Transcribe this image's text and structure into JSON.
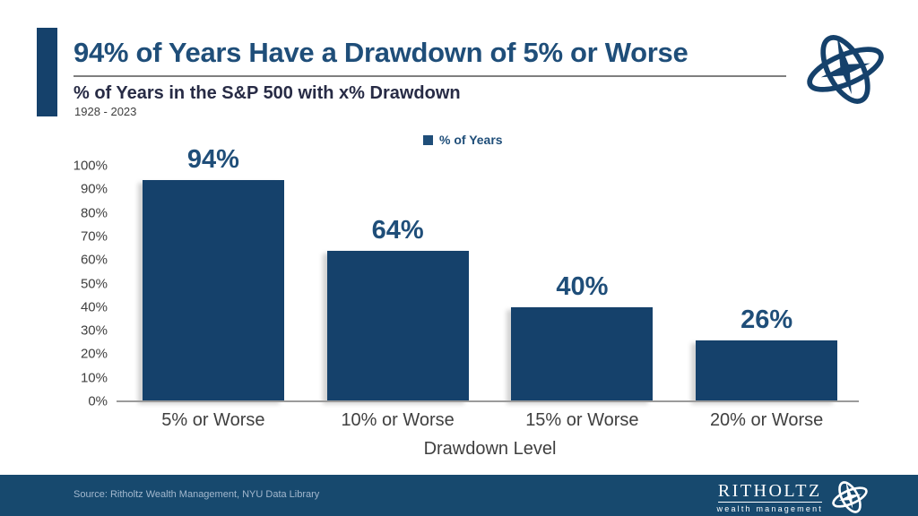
{
  "header": {
    "title": "94% of Years Have a Drawdown of 5% or Worse",
    "subtitle": "% of Years in the S&P 500 with x% Drawdown",
    "period": "1928 - 2023"
  },
  "legend": {
    "label": "% of Years"
  },
  "chart_data": {
    "type": "bar",
    "title": "94% of Years Have a Drawdown of 5% or Worse",
    "subtitle": "% of Years in the S&P 500 with x% Drawdown",
    "period": "1928 - 2023",
    "series_name": "% of Years",
    "categories": [
      "5% or Worse",
      "10% or Worse",
      "15% or Worse",
      "20% or Worse"
    ],
    "values": [
      94,
      64,
      40,
      26
    ],
    "value_labels": [
      "94%",
      "64%",
      "40%",
      "26%"
    ],
    "xlabel": "Drawdown Level",
    "ylabel": "",
    "ylim": [
      0,
      100
    ],
    "ytick_step": 10,
    "yticks": [
      "100%",
      "90%",
      "80%",
      "70%",
      "60%",
      "50%",
      "40%",
      "30%",
      "20%",
      "10%",
      "0%"
    ],
    "grid": false,
    "legend_position": "top-center",
    "bar_color": "#15416B",
    "label_color": "#1F4E79"
  },
  "footer": {
    "source": "Source: Ritholtz Wealth Management, NYU Data Library",
    "brand_name": "RITHOLTZ",
    "brand_sub": "wealth management"
  },
  "colors": {
    "navy_accent": "#1F4E79",
    "bar_fill": "#15416B",
    "footer_bg": "#17496E",
    "axis_text": "#3F3F3F",
    "subtitle_text": "#272B45",
    "underline": "#7F7F7F",
    "source_text": "#A3B8CE"
  }
}
